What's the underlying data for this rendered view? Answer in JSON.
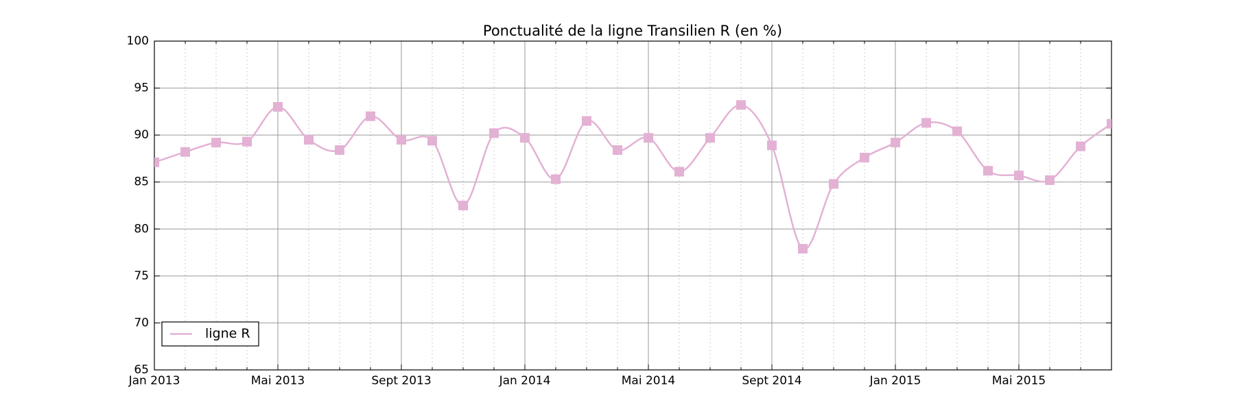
{
  "chart_data": {
    "type": "line",
    "title": "Ponctualité de la ligne Transilien R (en %)",
    "x": [
      "2013-01",
      "2013-02",
      "2013-03",
      "2013-04",
      "2013-05",
      "2013-06",
      "2013-07",
      "2013-08",
      "2013-09",
      "2013-10",
      "2013-11",
      "2013-12",
      "2014-01",
      "2014-02",
      "2014-03",
      "2014-04",
      "2014-05",
      "2014-06",
      "2014-07",
      "2014-08",
      "2014-09",
      "2014-10",
      "2014-11",
      "2014-12",
      "2015-01",
      "2015-02",
      "2015-03",
      "2015-04",
      "2015-05",
      "2015-06",
      "2015-07",
      "2015-08"
    ],
    "series": [
      {
        "name": "ligne R",
        "color": "#e3b1d4",
        "values": [
          87.1,
          88.2,
          89.2,
          89.3,
          93.0,
          89.5,
          88.4,
          92.0,
          89.5,
          89.4,
          82.5,
          90.2,
          89.7,
          85.3,
          91.5,
          88.4,
          89.7,
          86.1,
          89.7,
          93.2,
          88.9,
          77.9,
          84.8,
          87.6,
          89.2,
          91.3,
          90.4,
          86.2,
          85.7,
          85.2,
          88.8,
          91.2
        ]
      }
    ],
    "xlim": [
      "2013-01",
      "2015-08"
    ],
    "xticks": [
      {
        "value": "2013-01",
        "label": "Jan 2013"
      },
      {
        "value": "2013-05",
        "label": "Mai 2013"
      },
      {
        "value": "2013-09",
        "label": "Sept 2013"
      },
      {
        "value": "2014-01",
        "label": "Jan 2014"
      },
      {
        "value": "2014-05",
        "label": "Mai 2014"
      },
      {
        "value": "2014-09",
        "label": "Sept 2014"
      },
      {
        "value": "2015-01",
        "label": "Jan 2015"
      },
      {
        "value": "2015-05",
        "label": "Mai 2015"
      }
    ],
    "ylim": [
      65,
      100
    ],
    "yticks": [
      65,
      70,
      75,
      80,
      85,
      90,
      95,
      100
    ],
    "grid": true,
    "legend": "lower left"
  }
}
